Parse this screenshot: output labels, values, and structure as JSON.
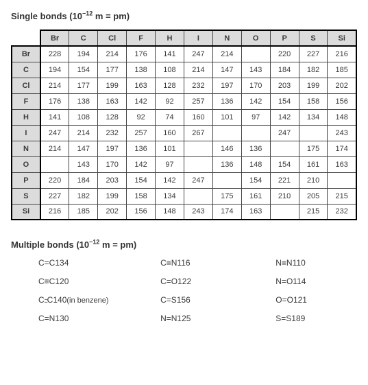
{
  "single": {
    "title_prefix": "Single bonds (10",
    "title_exp": "−12",
    "title_suffix": " m = pm)",
    "elements": [
      "Br",
      "C",
      "Cl",
      "F",
      "H",
      "I",
      "N",
      "O",
      "P",
      "S",
      "Si"
    ],
    "rows": [
      {
        "el": "Br",
        "v": [
          "228",
          "194",
          "214",
          "176",
          "141",
          "247",
          "214",
          "",
          "220",
          "227",
          "216"
        ]
      },
      {
        "el": "C",
        "v": [
          "194",
          "154",
          "177",
          "138",
          "108",
          "214",
          "147",
          "143",
          "184",
          "182",
          "185"
        ]
      },
      {
        "el": "Cl",
        "v": [
          "214",
          "177",
          "199",
          "163",
          "128",
          "232",
          "197",
          "170",
          "203",
          "199",
          "202"
        ]
      },
      {
        "el": "F",
        "v": [
          "176",
          "138",
          "163",
          "142",
          "92",
          "257",
          "136",
          "142",
          "154",
          "158",
          "156"
        ]
      },
      {
        "el": "H",
        "v": [
          "141",
          "108",
          "128",
          "92",
          "74",
          "160",
          "101",
          "97",
          "142",
          "134",
          "148"
        ]
      },
      {
        "el": "I",
        "v": [
          "247",
          "214",
          "232",
          "257",
          "160",
          "267",
          "",
          "",
          "247",
          "",
          "243"
        ]
      },
      {
        "el": "N",
        "v": [
          "214",
          "147",
          "197",
          "136",
          "101",
          "",
          "146",
          "136",
          "",
          "175",
          "174"
        ]
      },
      {
        "el": "O",
        "v": [
          "",
          "143",
          "170",
          "142",
          "97",
          "",
          "136",
          "148",
          "154",
          "161",
          "163"
        ]
      },
      {
        "el": "P",
        "v": [
          "220",
          "184",
          "203",
          "154",
          "142",
          "247",
          "",
          "154",
          "221",
          "210",
          ""
        ]
      },
      {
        "el": "S",
        "v": [
          "227",
          "182",
          "199",
          "158",
          "134",
          "",
          "175",
          "161",
          "210",
          "205",
          "215"
        ]
      },
      {
        "el": "Si",
        "v": [
          "216",
          "185",
          "202",
          "156",
          "148",
          "243",
          "174",
          "163",
          "",
          "215",
          "232"
        ]
      }
    ]
  },
  "multiple": {
    "title_prefix": "Multiple bonds (10",
    "title_exp": "−12",
    "title_suffix": " m = pm)",
    "grid": [
      [
        {
          "pair": "C=C",
          "val": "134"
        },
        {
          "pair": "C≡N",
          "val": "116"
        },
        {
          "pair": "N≡N",
          "val": "110"
        }
      ],
      [
        {
          "pair": "C≡C",
          "val": "120"
        },
        {
          "pair": "C=O",
          "val": "122"
        },
        {
          "pair": "N=O",
          "val": "114"
        }
      ],
      [
        {
          "pair": "C⚍C",
          "val": "140",
          "note": "(in benzene)"
        },
        {
          "pair": "C=S",
          "val": "156"
        },
        {
          "pair": "O=O",
          "val": "121"
        }
      ],
      [
        {
          "pair": "C=N",
          "val": "130"
        },
        {
          "pair": "N=N",
          "val": "125"
        },
        {
          "pair": "S=S",
          "val": "189"
        }
      ]
    ]
  },
  "styling": {
    "header_bg": "#dcdcdc",
    "border_color": "#444444",
    "thick_border": "#000000",
    "font_family": "Arial",
    "cell_fontsize": 11,
    "title_fontsize": 13
  }
}
